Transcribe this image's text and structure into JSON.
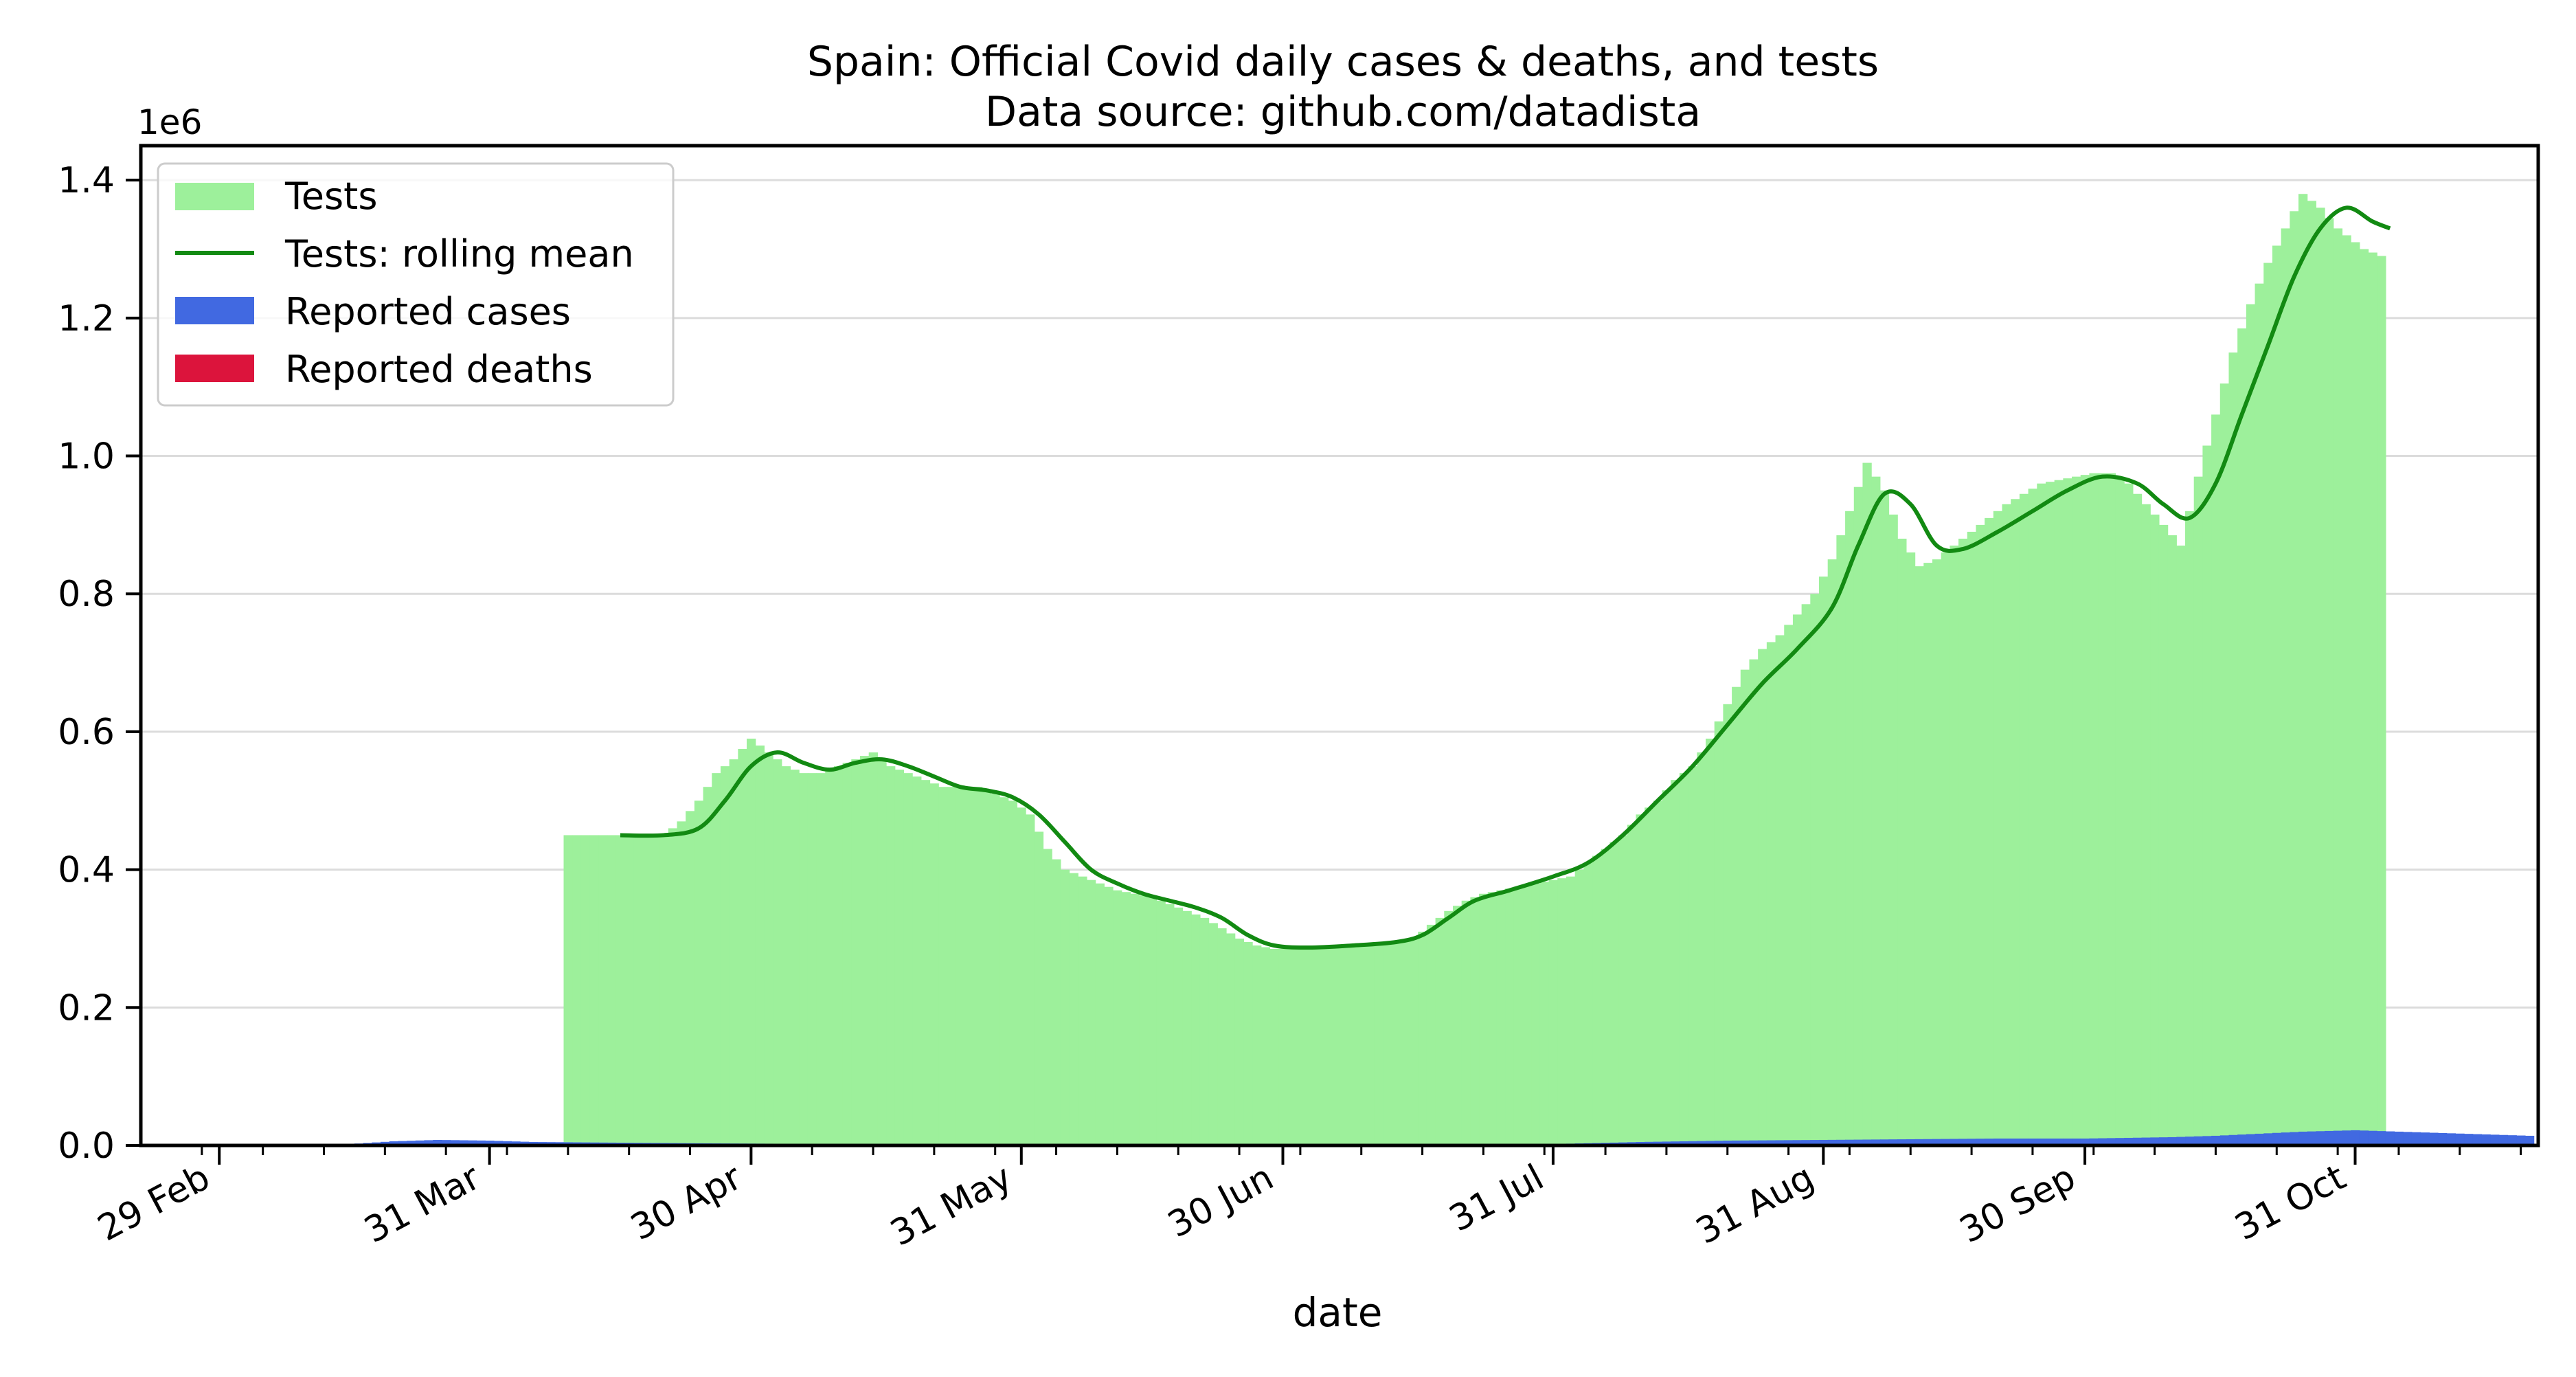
{
  "chart_data": {
    "type": "bar",
    "title": "Spain: Official Covid daily cases & deaths, and tests",
    "subtitle": "Data source: github.com/datadista",
    "xlabel": "date",
    "ylabel": "",
    "y_multiplier_label": "1e6",
    "ylim": [
      0,
      1.45
    ],
    "yticks": [
      0.0,
      0.2,
      0.4,
      0.6,
      0.8,
      1.0,
      1.2,
      1.4
    ],
    "ytick_labels": [
      "0.0",
      "0.2",
      "0.4",
      "0.6",
      "0.8",
      "1.0",
      "1.2",
      "1.4"
    ],
    "xlim": [
      "2020-02-20",
      "2020-11-21"
    ],
    "xticks": [
      "2020-02-29",
      "2020-03-31",
      "2020-04-30",
      "2020-05-31",
      "2020-06-30",
      "2020-07-31",
      "2020-08-31",
      "2020-09-30",
      "2020-10-31"
    ],
    "xtick_labels": [
      "29 Feb",
      "31 Mar",
      "30 Apr",
      "31 May",
      "30 Jun",
      "31 Jul",
      "31 Aug",
      "30 Sep",
      "31 Oct"
    ],
    "grid": "horizontal",
    "legend_position": "top-left",
    "colors": {
      "tests": "#9df09b",
      "tests_rolling_mean": "#128a12",
      "cases": "#4169e1",
      "deaths": "#dc143c"
    },
    "series": [
      {
        "name": "Tests",
        "kind": "bar",
        "points": [
          [
            "2020-04-09",
            0.45
          ],
          [
            "2020-04-16",
            0.45
          ],
          [
            "2020-04-20",
            0.45
          ],
          [
            "2020-04-22",
            0.47
          ],
          [
            "2020-04-24",
            0.5
          ],
          [
            "2020-04-26",
            0.54
          ],
          [
            "2020-04-28",
            0.56
          ],
          [
            "2020-04-30",
            0.59
          ],
          [
            "2020-05-02",
            0.57
          ],
          [
            "2020-05-04",
            0.55
          ],
          [
            "2020-05-06",
            0.54
          ],
          [
            "2020-05-08",
            0.54
          ],
          [
            "2020-05-10",
            0.55
          ],
          [
            "2020-05-12",
            0.56
          ],
          [
            "2020-05-14",
            0.57
          ],
          [
            "2020-05-16",
            0.55
          ],
          [
            "2020-05-18",
            0.54
          ],
          [
            "2020-05-20",
            0.53
          ],
          [
            "2020-05-22",
            0.52
          ],
          [
            "2020-05-24",
            0.52
          ],
          [
            "2020-05-26",
            0.52
          ],
          [
            "2020-05-28",
            0.51
          ],
          [
            "2020-05-30",
            0.5
          ],
          [
            "2020-06-01",
            0.48
          ],
          [
            "2020-06-03",
            0.43
          ],
          [
            "2020-06-05",
            0.4
          ],
          [
            "2020-06-07",
            0.39
          ],
          [
            "2020-06-09",
            0.38
          ],
          [
            "2020-06-11",
            0.37
          ],
          [
            "2020-06-13",
            0.365
          ],
          [
            "2020-06-15",
            0.36
          ],
          [
            "2020-06-17",
            0.35
          ],
          [
            "2020-06-19",
            0.34
          ],
          [
            "2020-06-21",
            0.33
          ],
          [
            "2020-06-23",
            0.315
          ],
          [
            "2020-06-25",
            0.3
          ],
          [
            "2020-06-27",
            0.29
          ],
          [
            "2020-06-29",
            0.285
          ],
          [
            "2020-07-03",
            0.285
          ],
          [
            "2020-07-07",
            0.29
          ],
          [
            "2020-07-11",
            0.29
          ],
          [
            "2020-07-15",
            0.3
          ],
          [
            "2020-07-17",
            0.32
          ],
          [
            "2020-07-19",
            0.34
          ],
          [
            "2020-07-21",
            0.355
          ],
          [
            "2020-07-23",
            0.365
          ],
          [
            "2020-07-25",
            0.37
          ],
          [
            "2020-07-27",
            0.375
          ],
          [
            "2020-07-29",
            0.38
          ],
          [
            "2020-07-31",
            0.385
          ],
          [
            "2020-08-02",
            0.39
          ],
          [
            "2020-08-04",
            0.41
          ],
          [
            "2020-08-06",
            0.43
          ],
          [
            "2020-08-08",
            0.45
          ],
          [
            "2020-08-10",
            0.48
          ],
          [
            "2020-08-12",
            0.5
          ],
          [
            "2020-08-14",
            0.53
          ],
          [
            "2020-08-16",
            0.55
          ],
          [
            "2020-08-18",
            0.59
          ],
          [
            "2020-08-20",
            0.64
          ],
          [
            "2020-08-22",
            0.69
          ],
          [
            "2020-08-24",
            0.72
          ],
          [
            "2020-08-26",
            0.74
          ],
          [
            "2020-08-28",
            0.77
          ],
          [
            "2020-08-30",
            0.8
          ],
          [
            "2020-09-01",
            0.85
          ],
          [
            "2020-09-03",
            0.92
          ],
          [
            "2020-09-05",
            0.99
          ],
          [
            "2020-09-07",
            0.95
          ],
          [
            "2020-09-09",
            0.88
          ],
          [
            "2020-09-11",
            0.84
          ],
          [
            "2020-09-13",
            0.85
          ],
          [
            "2020-09-15",
            0.87
          ],
          [
            "2020-09-17",
            0.89
          ],
          [
            "2020-09-19",
            0.91
          ],
          [
            "2020-09-21",
            0.93
          ],
          [
            "2020-09-23",
            0.945
          ],
          [
            "2020-09-25",
            0.96
          ],
          [
            "2020-09-27",
            0.965
          ],
          [
            "2020-09-29",
            0.97
          ],
          [
            "2020-10-01",
            0.975
          ],
          [
            "2020-10-03",
            0.975
          ],
          [
            "2020-10-05",
            0.96
          ],
          [
            "2020-10-07",
            0.93
          ],
          [
            "2020-10-09",
            0.9
          ],
          [
            "2020-10-11",
            0.87
          ],
          [
            "2020-10-13",
            0.97
          ],
          [
            "2020-10-15",
            1.06
          ],
          [
            "2020-10-17",
            1.15
          ],
          [
            "2020-10-19",
            1.22
          ],
          [
            "2020-10-21",
            1.28
          ],
          [
            "2020-10-23",
            1.33
          ],
          [
            "2020-10-25",
            1.38
          ],
          [
            "2020-10-27",
            1.36
          ],
          [
            "2020-10-29",
            1.33
          ],
          [
            "2020-11-01",
            1.3
          ],
          [
            "2020-11-03",
            1.29
          ]
        ]
      },
      {
        "name": "Tests: rolling mean",
        "kind": "line",
        "points": [
          [
            "2020-04-15",
            0.45
          ],
          [
            "2020-04-20",
            0.45
          ],
          [
            "2020-04-24",
            0.46
          ],
          [
            "2020-04-27",
            0.5
          ],
          [
            "2020-04-30",
            0.55
          ],
          [
            "2020-05-03",
            0.57
          ],
          [
            "2020-05-06",
            0.555
          ],
          [
            "2020-05-09",
            0.545
          ],
          [
            "2020-05-12",
            0.555
          ],
          [
            "2020-05-15",
            0.56
          ],
          [
            "2020-05-18",
            0.55
          ],
          [
            "2020-05-21",
            0.535
          ],
          [
            "2020-05-24",
            0.52
          ],
          [
            "2020-05-27",
            0.515
          ],
          [
            "2020-05-30",
            0.505
          ],
          [
            "2020-06-02",
            0.48
          ],
          [
            "2020-06-05",
            0.44
          ],
          [
            "2020-06-08",
            0.4
          ],
          [
            "2020-06-11",
            0.38
          ],
          [
            "2020-06-14",
            0.365
          ],
          [
            "2020-06-17",
            0.355
          ],
          [
            "2020-06-20",
            0.345
          ],
          [
            "2020-06-23",
            0.33
          ],
          [
            "2020-06-26",
            0.305
          ],
          [
            "2020-06-29",
            0.29
          ],
          [
            "2020-07-03",
            0.287
          ],
          [
            "2020-07-08",
            0.29
          ],
          [
            "2020-07-13",
            0.295
          ],
          [
            "2020-07-16",
            0.305
          ],
          [
            "2020-07-19",
            0.33
          ],
          [
            "2020-07-22",
            0.355
          ],
          [
            "2020-07-26",
            0.37
          ],
          [
            "2020-07-31",
            0.39
          ],
          [
            "2020-08-04",
            0.41
          ],
          [
            "2020-08-08",
            0.45
          ],
          [
            "2020-08-12",
            0.5
          ],
          [
            "2020-08-16",
            0.55
          ],
          [
            "2020-08-20",
            0.61
          ],
          [
            "2020-08-24",
            0.67
          ],
          [
            "2020-08-28",
            0.72
          ],
          [
            "2020-09-01",
            0.78
          ],
          [
            "2020-09-04",
            0.87
          ],
          [
            "2020-09-07",
            0.945
          ],
          [
            "2020-09-10",
            0.93
          ],
          [
            "2020-09-13",
            0.87
          ],
          [
            "2020-09-16",
            0.865
          ],
          [
            "2020-09-20",
            0.89
          ],
          [
            "2020-09-24",
            0.92
          ],
          [
            "2020-09-28",
            0.95
          ],
          [
            "2020-10-02",
            0.97
          ],
          [
            "2020-10-06",
            0.96
          ],
          [
            "2020-10-09",
            0.93
          ],
          [
            "2020-10-12",
            0.91
          ],
          [
            "2020-10-15",
            0.96
          ],
          [
            "2020-10-18",
            1.06
          ],
          [
            "2020-10-21",
            1.16
          ],
          [
            "2020-10-24",
            1.26
          ],
          [
            "2020-10-27",
            1.33
          ],
          [
            "2020-10-30",
            1.36
          ],
          [
            "2020-11-02",
            1.34
          ],
          [
            "2020-11-04",
            1.33
          ]
        ]
      },
      {
        "name": "Reported cases",
        "kind": "bar",
        "points": [
          [
            "2020-03-15",
            0.002
          ],
          [
            "2020-03-20",
            0.006
          ],
          [
            "2020-03-25",
            0.008
          ],
          [
            "2020-03-31",
            0.007
          ],
          [
            "2020-04-05",
            0.005
          ],
          [
            "2020-04-15",
            0.004
          ],
          [
            "2020-04-25",
            0.003
          ],
          [
            "2020-05-10",
            0.002
          ],
          [
            "2020-06-10",
            0.001
          ],
          [
            "2020-07-10",
            0.001
          ],
          [
            "2020-07-31",
            0.002
          ],
          [
            "2020-08-10",
            0.005
          ],
          [
            "2020-08-20",
            0.007
          ],
          [
            "2020-08-31",
            0.008
          ],
          [
            "2020-09-10",
            0.009
          ],
          [
            "2020-09-20",
            0.01
          ],
          [
            "2020-09-30",
            0.01
          ],
          [
            "2020-10-05",
            0.011
          ],
          [
            "2020-10-10",
            0.012
          ],
          [
            "2020-10-15",
            0.014
          ],
          [
            "2020-10-20",
            0.017
          ],
          [
            "2020-10-25",
            0.02
          ],
          [
            "2020-10-31",
            0.022
          ],
          [
            "2020-11-05",
            0.02
          ],
          [
            "2020-11-10",
            0.018
          ],
          [
            "2020-11-15",
            0.016
          ],
          [
            "2020-11-20",
            0.014
          ]
        ]
      },
      {
        "name": "Reported deaths",
        "kind": "bar",
        "points": [
          [
            "2020-03-25",
            0.0008
          ],
          [
            "2020-04-05",
            0.0008
          ],
          [
            "2020-04-15",
            0.0005
          ],
          [
            "2020-05-01",
            0.0003
          ],
          [
            "2020-06-01",
            0.0001
          ],
          [
            "2020-09-01",
            0.0002
          ],
          [
            "2020-10-15",
            0.0002
          ],
          [
            "2020-11-10",
            0.0003
          ]
        ]
      }
    ]
  }
}
